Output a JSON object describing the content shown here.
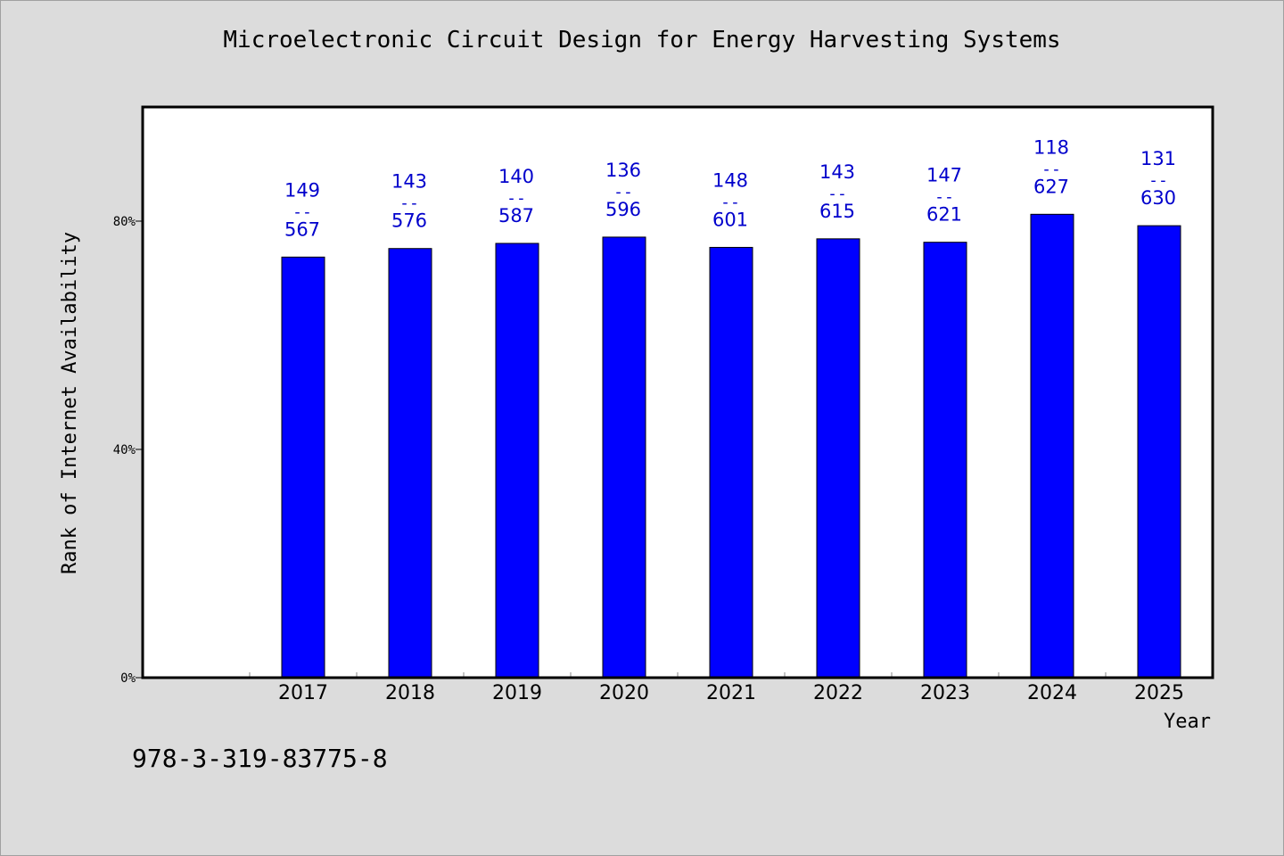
{
  "title": "Microelectronic Circuit Design for Energy Harvesting Systems",
  "footer_code": "978-3-319-83775-8",
  "colors": {
    "bar": "#0000ff",
    "label": "#0000cc",
    "background": "#dcdcdc",
    "plot": "#ffffff"
  },
  "chart_data": {
    "type": "bar",
    "title": "Microelectronic Circuit Design for Energy Harvesting Systems",
    "xlabel": "Year",
    "ylabel": "Rank of Internet Availability",
    "categories": [
      "2017",
      "2018",
      "2019",
      "2020",
      "2021",
      "2022",
      "2023",
      "2024",
      "2025"
    ],
    "series": [
      {
        "values": [
          73.7,
          75.2,
          76.1,
          77.2,
          75.4,
          76.9,
          76.3,
          81.2,
          79.2
        ]
      }
    ],
    "rank": [
      149,
      143,
      140,
      136,
      148,
      143,
      147,
      118,
      131
    ],
    "total": [
      567,
      576,
      587,
      596,
      601,
      615,
      621,
      627,
      630
    ],
    "data_label_separator": "--",
    "y_ticks": [
      "0%",
      "40%",
      "80%"
    ],
    "y_tick_values": [
      0,
      40,
      80
    ],
    "ylim": [
      0,
      100
    ],
    "grid": false,
    "legend": "none"
  }
}
